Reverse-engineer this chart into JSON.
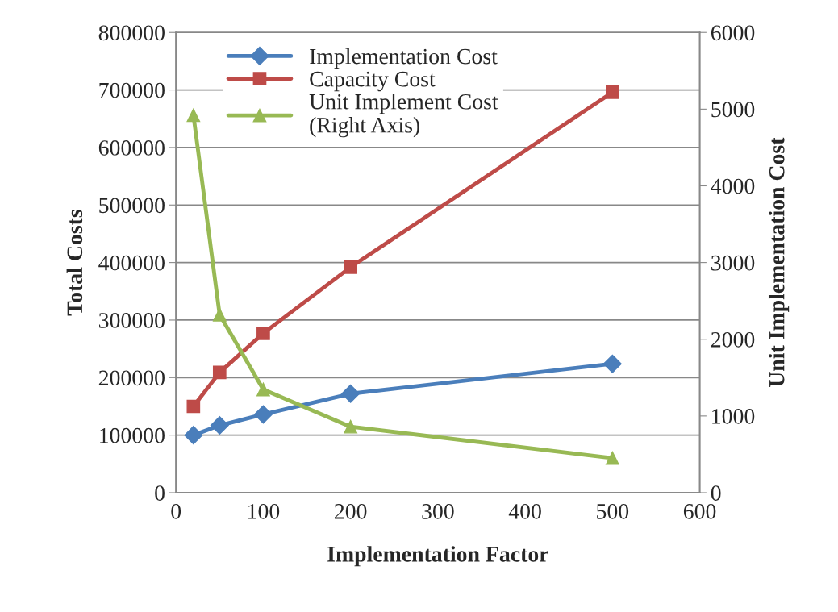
{
  "chart_data": {
    "type": "line",
    "xlabel": "Implementation Factor",
    "ylabel": "Total Costs",
    "y2label": "Unit Implementation Cost",
    "x": [
      20,
      50,
      100,
      200,
      500
    ],
    "series": [
      {
        "name": "Implementation Cost",
        "color": "#4a7ebb",
        "marker": "diamond",
        "values": [
          100000,
          117000,
          136000,
          172000,
          224000
        ]
      },
      {
        "name": "Capacity Cost",
        "color": "#be4b48",
        "marker": "square",
        "values": [
          150000,
          209000,
          277000,
          392000,
          696000
        ]
      },
      {
        "name": "Unit Implement Cost\n(Right Axis)",
        "color": "#98b954",
        "marker": "triangle",
        "axis": "y2",
        "values": [
          4920,
          2320,
          1345,
          860,
          450
        ]
      }
    ],
    "xlim": [
      0,
      600
    ],
    "xticks": [
      0,
      100,
      200,
      300,
      400,
      500,
      600
    ],
    "ylim": [
      0,
      800000
    ],
    "yticks": [
      0,
      100000,
      200000,
      300000,
      400000,
      500000,
      600000,
      700000,
      800000
    ],
    "y2lim": [
      0,
      6000
    ],
    "y2ticks": [
      0,
      1000,
      2000,
      3000,
      4000,
      5000,
      6000
    ],
    "grid": "y",
    "legend": "top left",
    "line_style": "solid"
  }
}
